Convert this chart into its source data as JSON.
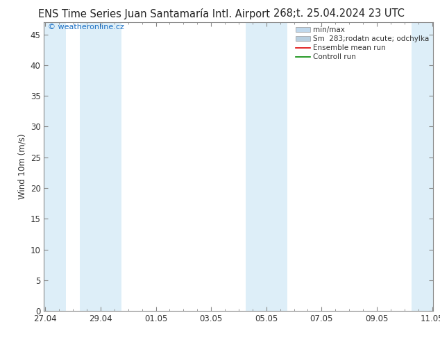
{
  "title_left": "ENS Time Series Juan Santamaría Intl. Airport",
  "title_right": "268;t. 25.04.2024 23 UTC",
  "ylabel": "Wind 10m (m/s)",
  "watermark": "© weatheronline.cz",
  "ylim": [
    0,
    47
  ],
  "yticks": [
    0,
    5,
    10,
    15,
    20,
    25,
    30,
    35,
    40,
    45
  ],
  "xtick_labels": [
    "27.04",
    "29.04",
    "01.05",
    "03.05",
    "05.05",
    "07.05",
    "09.05",
    "11.05"
  ],
  "xtick_positions": [
    0,
    2,
    4,
    6,
    8,
    10,
    12,
    14
  ],
  "x_total": 14,
  "shade_bands": [
    [
      -0.05,
      0.75
    ],
    [
      1.25,
      2.75
    ],
    [
      7.25,
      8.75
    ],
    [
      13.25,
      14.05
    ]
  ],
  "bg_color": "#ffffff",
  "shade_color": "#ddeef8",
  "border_color": "#888888",
  "legend_minmax_color": "#c0d8ec",
  "legend_sm_color": "#b8cfe0",
  "legend_ensemble_color": "#dd0000",
  "legend_control_color": "#008800",
  "title_fontsize": 10.5,
  "tick_fontsize": 8.5,
  "ylabel_fontsize": 8.5,
  "watermark_fontsize": 8,
  "legend_fontsize": 7.5
}
